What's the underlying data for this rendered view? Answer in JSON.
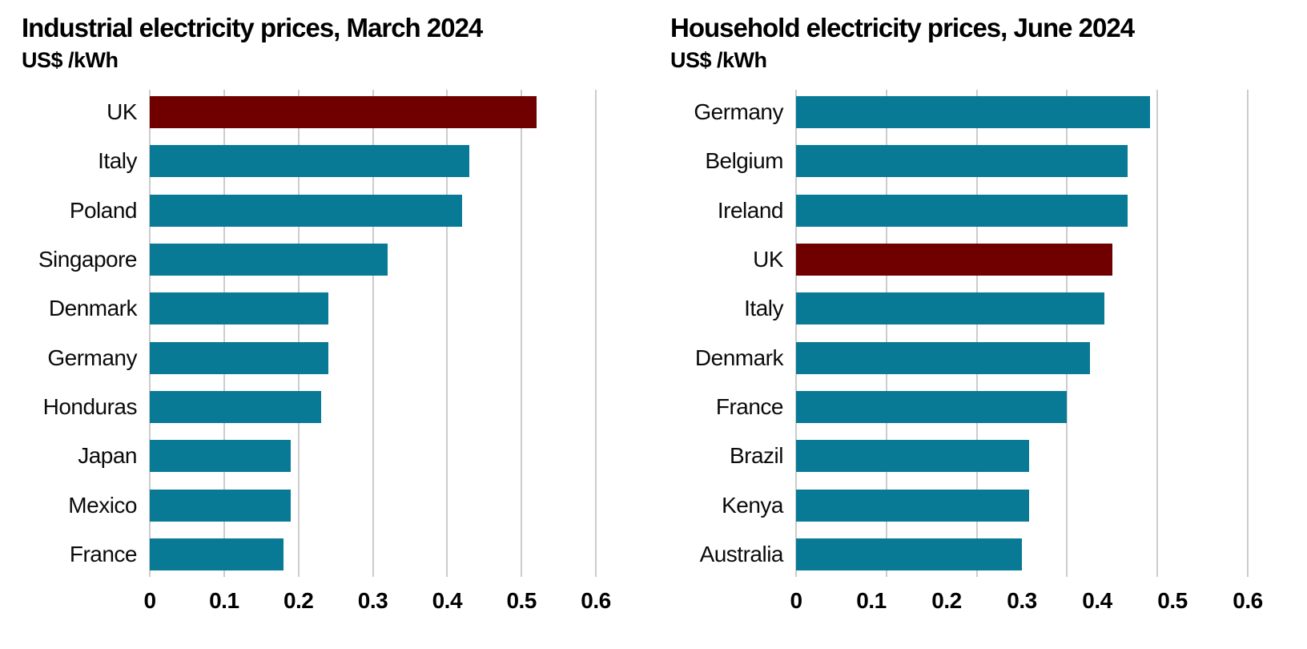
{
  "chart_data": [
    {
      "type": "bar",
      "orientation": "horizontal",
      "title": "Industrial electricity prices, March 2024",
      "subtitle": "US$ /kWh",
      "categories": [
        "UK",
        "Italy",
        "Poland",
        "Singapore",
        "Denmark",
        "Germany",
        "Honduras",
        "Japan",
        "Mexico",
        "France"
      ],
      "values": [
        0.52,
        0.43,
        0.42,
        0.32,
        0.24,
        0.24,
        0.23,
        0.19,
        0.19,
        0.18
      ],
      "highlight_category": "UK",
      "bar_color": "#087a96",
      "highlight_color": "#700000",
      "xlim": [
        0,
        0.6
      ],
      "x_ticks": [
        0,
        0.1,
        0.2,
        0.3,
        0.4,
        0.5,
        0.6
      ],
      "tick_labels": [
        "0",
        "0.1",
        "0.2",
        "0.3",
        "0.4",
        "0.5",
        "0.6"
      ],
      "gridline_values": [
        0,
        0.1,
        0.2,
        0.3,
        0.4,
        0.5,
        0.6
      ],
      "grid": true,
      "legend": "none"
    },
    {
      "type": "bar",
      "orientation": "horizontal",
      "title": "Household electricity prices, June 2024",
      "subtitle": "US$ /kWh",
      "categories": [
        "Germany",
        "Belgium",
        "Ireland",
        "UK",
        "Italy",
        "Denmark",
        "France",
        "Brazil",
        "Kenya",
        "Australia"
      ],
      "values": [
        0.47,
        0.44,
        0.44,
        0.42,
        0.41,
        0.39,
        0.36,
        0.31,
        0.31,
        0.3
      ],
      "highlight_category": "UK",
      "bar_color": "#087a96",
      "highlight_color": "#700000",
      "xlim": [
        0,
        0.6
      ],
      "x_ticks": [
        0,
        0.1,
        0.2,
        0.3,
        0.4,
        0.5,
        0.6
      ],
      "tick_labels": [
        "0",
        "0.1",
        "0.2",
        "0.3",
        "0.4",
        "0.5",
        "0.6"
      ],
      "gridline_values": [
        0,
        0.12,
        0.24,
        0.36,
        0.48,
        0.6
      ],
      "grid": true,
      "legend": "none"
    }
  ],
  "colors": {
    "bar_teal": "#087a96",
    "highlight_maroon": "#700000",
    "gridline": "#cccccc",
    "text": "#000000",
    "background": "#ffffff"
  }
}
